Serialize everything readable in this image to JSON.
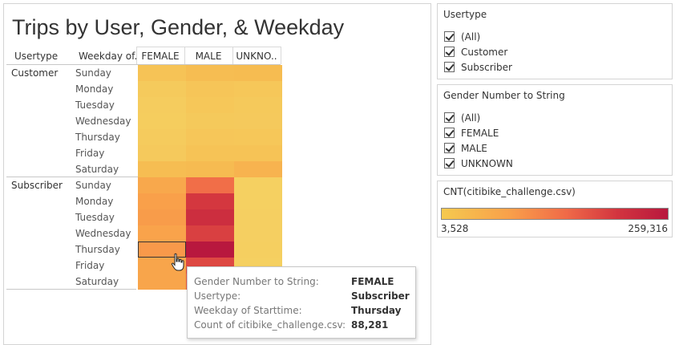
{
  "chart_data": {
    "type": "heatmap",
    "title": "Trips by User, Gender, & Weekday",
    "row_header": "Usertype",
    "row2_header": "Weekday of..",
    "columns": [
      "FEMALE",
      "MALE",
      "UNKNO.."
    ],
    "groups": [
      {
        "name": "Customer",
        "rows": [
          {
            "weekday": "Sunday",
            "values": [
              18000,
              25000,
              28000
            ]
          },
          {
            "weekday": "Monday",
            "values": [
              10000,
              16000,
              14000
            ]
          },
          {
            "weekday": "Tuesday",
            "values": [
              8000,
              14000,
              12000
            ]
          },
          {
            "weekday": "Wednesday",
            "values": [
              7000,
              12000,
              11000
            ]
          },
          {
            "weekday": "Thursday",
            "values": [
              9000,
              15000,
              14000
            ]
          },
          {
            "weekday": "Friday",
            "values": [
              11000,
              18000,
              18000
            ]
          },
          {
            "weekday": "Saturday",
            "values": [
              25000,
              30000,
              45000
            ]
          }
        ]
      },
      {
        "name": "Subscriber",
        "rows": [
          {
            "weekday": "Sunday",
            "values": [
              65000,
              140000,
              3528
            ]
          },
          {
            "weekday": "Monday",
            "values": [
              80000,
              200000,
              4000
            ]
          },
          {
            "weekday": "Tuesday",
            "values": [
              85000,
              215000,
              4200
            ]
          },
          {
            "weekday": "Wednesday",
            "values": [
              75000,
              190000,
              4100
            ]
          },
          {
            "weekday": "Thursday",
            "values": [
              88281,
              259316,
              4300
            ]
          },
          {
            "weekday": "Friday",
            "values": [
              70000,
              180000,
              4000
            ]
          },
          {
            "weekday": "Saturday",
            "values": [
              70000,
              160000,
              3600
            ]
          }
        ]
      }
    ],
    "color_range": [
      3528,
      259316
    ],
    "selected": {
      "group": 1,
      "row": 4,
      "col": 0
    }
  },
  "legend": {
    "title": "CNT(citibike_challenge.csv)",
    "min_label": "3,528",
    "max_label": "259,316"
  },
  "filters": [
    {
      "title": "Usertype",
      "items": [
        "(All)",
        "Customer",
        "Subscriber"
      ]
    },
    {
      "title": "Gender Number to String",
      "items": [
        "(All)",
        "FEMALE",
        "MALE",
        "UNKNOWN"
      ]
    }
  ],
  "tooltip": [
    {
      "key": "Gender Number to String:",
      "value": "FEMALE"
    },
    {
      "key": "Usertype:",
      "value": "Subscriber"
    },
    {
      "key": "Weekday of Starttime:",
      "value": "Thursday"
    },
    {
      "key": "Count of citibike_challenge.csv:",
      "value": "88,281"
    }
  ],
  "colors": {
    "low": "#f5d061",
    "mid": "#f9a04a",
    "high": "#b8183e"
  }
}
